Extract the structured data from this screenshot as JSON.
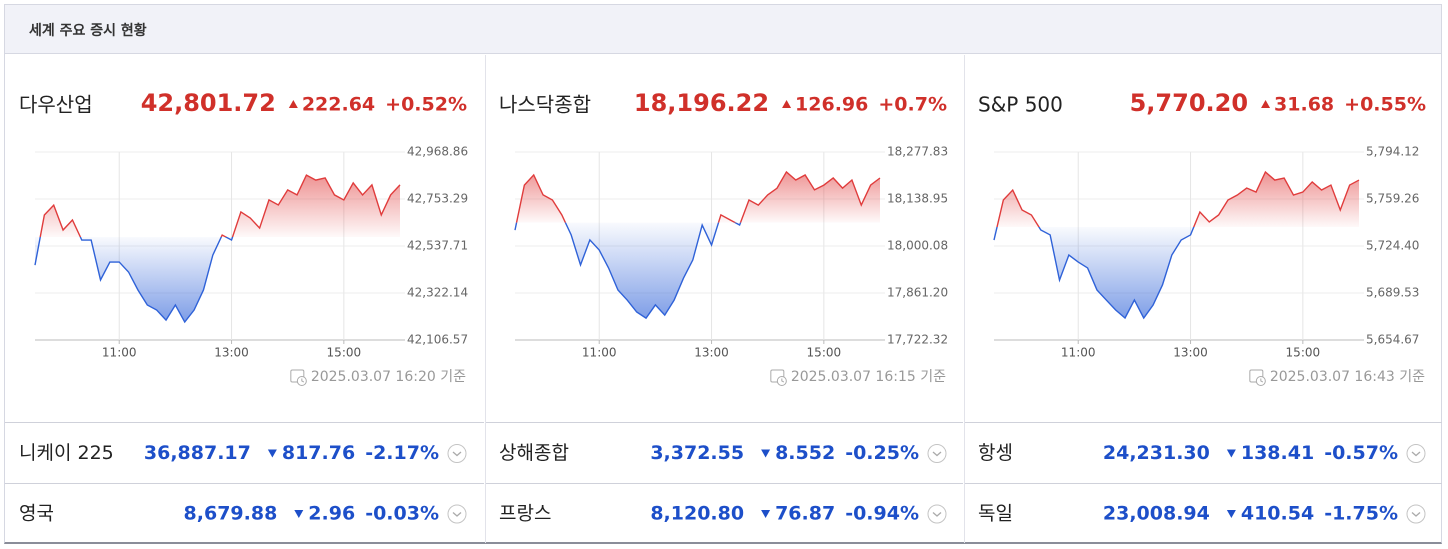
{
  "header": {
    "title": "세계 주요 증시 현황"
  },
  "indices": [
    {
      "name": "다우산업",
      "price": {
        "value": 42801.72,
        "label": "42,801.72"
      },
      "change": {
        "value": 222.64,
        "label": "222.64"
      },
      "direction": "up",
      "percent": "+0.52%",
      "chart": {
        "type": "area",
        "x": [
          "09:30",
          "09:40",
          "09:50",
          "10:00",
          "10:10",
          "10:20",
          "10:30",
          "10:40",
          "10:50",
          "11:00",
          "11:10",
          "11:20",
          "11:30",
          "11:40",
          "11:50",
          "12:00",
          "12:10",
          "12:20",
          "12:30",
          "12:40",
          "12:50",
          "13:00",
          "13:10",
          "13:20",
          "13:30",
          "13:40",
          "13:50",
          "14:00",
          "14:10",
          "14:20",
          "14:30",
          "14:40",
          "14:50",
          "15:00",
          "15:10",
          "15:20",
          "15:30",
          "15:40",
          "15:50",
          "16:00"
        ],
        "values": [
          42450,
          42680,
          42725,
          42611,
          42657,
          42565,
          42565,
          42382,
          42464,
          42464,
          42418,
          42336,
          42267,
          42244,
          42198,
          42267,
          42189,
          42244,
          42336,
          42496,
          42588,
          42565,
          42694,
          42666,
          42620,
          42749,
          42726,
          42795,
          42772,
          42863,
          42840,
          42850,
          42772,
          42749,
          42827,
          42772,
          42818,
          42680,
          42772,
          42818
        ],
        "xlim": [
          "09:30",
          "16:00"
        ],
        "xticks": [
          "11:00",
          "13:00",
          "15:00"
        ],
        "ylim": [
          42106.57,
          42968.86
        ],
        "yticks": [
          {
            "value": 42106.57,
            "label": "42,106.57"
          },
          {
            "value": 42322.14,
            "label": "42,322.14"
          },
          {
            "value": 42537.71,
            "label": "42,537.71"
          },
          {
            "value": 42753.29,
            "label": "42,753.29"
          },
          {
            "value": 42968.86,
            "label": "42,968.86"
          }
        ],
        "up_color": "#e03c3c",
        "down_color": "#2f62d8"
      },
      "timestamp": "2025.03.07 16:20 기준"
    },
    {
      "name": "나스닥종합",
      "price": {
        "value": 18196.22,
        "label": "18,196.22"
      },
      "change": {
        "value": 126.96,
        "label": "126.96"
      },
      "direction": "up",
      "percent": "+0.7%",
      "chart": {
        "type": "area",
        "x": [
          "09:30",
          "09:40",
          "09:50",
          "10:00",
          "10:10",
          "10:20",
          "10:30",
          "10:40",
          "10:50",
          "11:00",
          "11:10",
          "11:20",
          "11:30",
          "11:40",
          "11:50",
          "12:00",
          "12:10",
          "12:20",
          "12:30",
          "12:40",
          "12:50",
          "13:00",
          "13:10",
          "13:20",
          "13:30",
          "13:40",
          "13:50",
          "14:00",
          "14:10",
          "14:20",
          "14:30",
          "14:40",
          "14:50",
          "15:00",
          "15:10",
          "15:20",
          "15:30",
          "15:40",
          "15:50",
          "16:00"
        ],
        "values": [
          18047,
          18180,
          18210,
          18151,
          18136,
          18092,
          18033,
          17944,
          18018,
          17988,
          17935,
          17870,
          17840,
          17805,
          17787,
          17826,
          17796,
          17840,
          17905,
          17959,
          18062,
          18003,
          18092,
          18077,
          18062,
          18136,
          18121,
          18151,
          18171,
          18219,
          18195,
          18210,
          18166,
          18180,
          18201,
          18171,
          18195,
          18121,
          18180,
          18201
        ],
        "xlim": [
          "09:30",
          "16:00"
        ],
        "xticks": [
          "11:00",
          "13:00",
          "15:00"
        ],
        "ylim": [
          17722.32,
          18277.83
        ],
        "yticks": [
          {
            "value": 17722.32,
            "label": "17,722.32"
          },
          {
            "value": 17861.2,
            "label": "17,861.20"
          },
          {
            "value": 18000.08,
            "label": "18,000.08"
          },
          {
            "value": 18138.95,
            "label": "18,138.95"
          },
          {
            "value": 18277.83,
            "label": "18,277.83"
          }
        ],
        "up_color": "#e03c3c",
        "down_color": "#2f62d8"
      },
      "timestamp": "2025.03.07 16:15 기준"
    },
    {
      "name": "S&P 500",
      "price": {
        "value": 5770.2,
        "label": "5,770.20"
      },
      "change": {
        "value": 31.68,
        "label": "31.68"
      },
      "direction": "up",
      "percent": "+0.55%",
      "chart": {
        "type": "area",
        "x": [
          "09:30",
          "09:40",
          "09:50",
          "10:00",
          "10:10",
          "10:20",
          "10:30",
          "10:40",
          "10:50",
          "11:00",
          "11:10",
          "11:20",
          "11:30",
          "11:40",
          "11:50",
          "12:00",
          "12:10",
          "12:20",
          "12:30",
          "12:40",
          "12:50",
          "13:00",
          "13:10",
          "13:20",
          "13:30",
          "13:40",
          "13:50",
          "14:00",
          "14:10",
          "14:20",
          "14:30",
          "14:40",
          "14:50",
          "15:00",
          "15:10",
          "15:20",
          "15:30",
          "15:40",
          "15:50",
          "16:00"
        ],
        "values": [
          5728.8,
          5758.5,
          5765.9,
          5751.1,
          5747.4,
          5736.3,
          5732.6,
          5699.1,
          5717.7,
          5712.5,
          5708.1,
          5691.8,
          5684.3,
          5676.9,
          5671,
          5684.3,
          5671,
          5680.6,
          5695.5,
          5717.7,
          5728.8,
          5732.6,
          5749.6,
          5742.2,
          5747.4,
          5758.5,
          5762.2,
          5767.4,
          5764.4,
          5779.3,
          5773.3,
          5774.8,
          5762.2,
          5764.4,
          5771.9,
          5765.9,
          5769.6,
          5751.1,
          5769.6,
          5773.3
        ],
        "xlim": [
          "09:30",
          "16:00"
        ],
        "xticks": [
          "11:00",
          "13:00",
          "15:00"
        ],
        "ylim": [
          5654.67,
          5794.12
        ],
        "yticks": [
          {
            "value": 5654.67,
            "label": "5,654.67"
          },
          {
            "value": 5689.53,
            "label": "5,689.53"
          },
          {
            "value": 5724.4,
            "label": "5,724.40"
          },
          {
            "value": 5759.26,
            "label": "5,759.26"
          },
          {
            "value": 5794.12,
            "label": "5,794.12"
          }
        ],
        "up_color": "#e03c3c",
        "down_color": "#2f62d8"
      },
      "timestamp": "2025.03.07 16:43 기준"
    }
  ],
  "markets": [
    {
      "name": "니케이 225",
      "price": "36,887.17",
      "change": "817.76",
      "direction": "down",
      "percent": "-2.17%"
    },
    {
      "name": "상해종합",
      "price": "3,372.55",
      "change": "8.552",
      "direction": "down",
      "percent": "-0.25%"
    },
    {
      "name": "항셍",
      "price": "24,231.30",
      "change": "138.41",
      "direction": "down",
      "percent": "-0.57%"
    },
    {
      "name": "영국",
      "price": "8,679.88",
      "change": "2.96",
      "direction": "down",
      "percent": "-0.03%"
    },
    {
      "name": "프랑스",
      "price": "8,120.80",
      "change": "76.87",
      "direction": "down",
      "percent": "-0.94%"
    },
    {
      "name": "독일",
      "price": "23,008.94",
      "change": "410.54",
      "direction": "down",
      "percent": "-1.75%"
    }
  ]
}
